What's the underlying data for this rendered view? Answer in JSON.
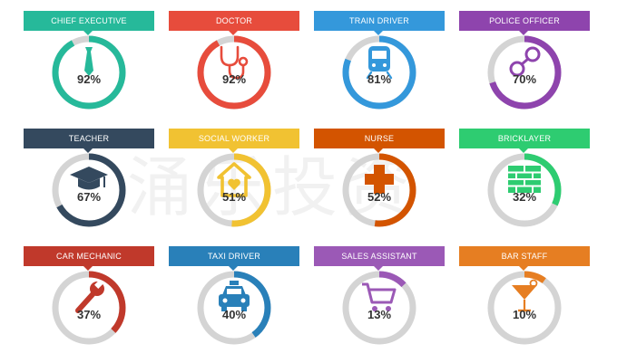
{
  "watermark": "涌乐投资",
  "chart_data": {
    "type": "donut-grid",
    "items": [
      {
        "label": "CHIEF EXECUTIVE",
        "value": 92,
        "display": "92%",
        "color": "#26b99a",
        "icon": "tie-icon"
      },
      {
        "label": "DOCTOR",
        "value": 92,
        "display": "92%",
        "color": "#e74c3c",
        "icon": "stethoscope-icon"
      },
      {
        "label": "TRAIN DRIVER",
        "value": 81,
        "display": "81%",
        "color": "#3498db",
        "icon": "train-icon"
      },
      {
        "label": "POLICE OFFICER",
        "value": 70,
        "display": "70%",
        "color": "#8e44ad",
        "icon": "handcuffs-icon"
      },
      {
        "label": "TEACHER",
        "value": 67,
        "display": "67%",
        "color": "#34495e",
        "icon": "graduation-cap-icon"
      },
      {
        "label": "SOCIAL WORKER",
        "value": 51,
        "display": "51%",
        "color": "#f1c232",
        "icon": "house-heart-icon"
      },
      {
        "label": "NURSE",
        "value": 52,
        "display": "52%",
        "color": "#d35400",
        "icon": "medical-cross-icon"
      },
      {
        "label": "BRICKLAYER",
        "value": 32,
        "display": "32%",
        "color": "#2ecc71",
        "icon": "brick-wall-icon"
      },
      {
        "label": "CAR MECHANIC",
        "value": 37,
        "display": "37%",
        "color": "#c0392b",
        "icon": "wrench-icon"
      },
      {
        "label": "TAXI DRIVER",
        "value": 40,
        "display": "40%",
        "color": "#2980b9",
        "icon": "taxi-icon"
      },
      {
        "label": "SALES ASSISTANT",
        "value": 13,
        "display": "13%",
        "color": "#9b59b6",
        "icon": "shopping-cart-icon"
      },
      {
        "label": "BAR STAFF",
        "value": 10,
        "display": "10%",
        "color": "#e67e22",
        "icon": "cocktail-glass-icon"
      }
    ]
  }
}
